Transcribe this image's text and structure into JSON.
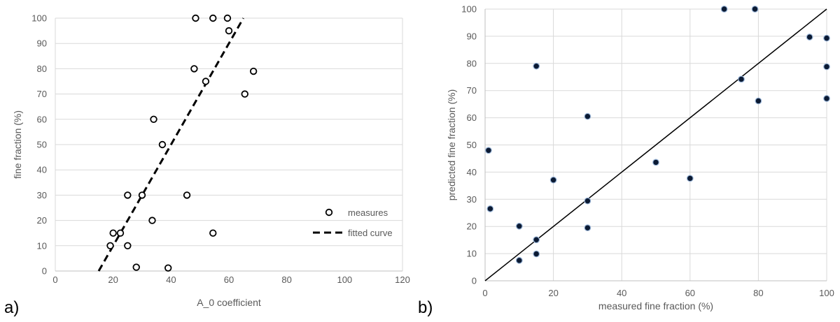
{
  "colors": {
    "grid": "#d9d9d9",
    "axis": "#bfbfbf",
    "marker": "#000000",
    "marker_face_b": "#0b1a33",
    "marker_glow_b": "#9bb6d8"
  },
  "chart_data": [
    {
      "type": "scatter",
      "panel_label": "a)",
      "xlabel": "A_0 coefficient",
      "ylabel": "fine fraction (%)",
      "xlim": [
        0,
        120
      ],
      "ylim": [
        0,
        100
      ],
      "xticks": [
        0,
        20,
        40,
        60,
        80,
        100,
        120
      ],
      "yticks": [
        0,
        10,
        20,
        30,
        40,
        50,
        60,
        70,
        80,
        90,
        100
      ],
      "grid": "horizontal",
      "legend": {
        "position": "bottom-right",
        "entries": [
          "measures",
          "fitted curve"
        ]
      },
      "series": [
        {
          "name": "measures",
          "marker": "open-circle",
          "points": [
            [
              48.5,
              100
            ],
            [
              54.5,
              100
            ],
            [
              59.5,
              100
            ],
            [
              60,
              95
            ],
            [
              48,
              80
            ],
            [
              68.5,
              79
            ],
            [
              52,
              75
            ],
            [
              65.5,
              70
            ],
            [
              34,
              60
            ],
            [
              37,
              50
            ],
            [
              25,
              30
            ],
            [
              30,
              30
            ],
            [
              45.5,
              30
            ],
            [
              33.5,
              20
            ],
            [
              20,
              15
            ],
            [
              22.5,
              15
            ],
            [
              54.5,
              15
            ],
            [
              19,
              10
            ],
            [
              25,
              10
            ],
            [
              28,
              1.5
            ],
            [
              39,
              1.2
            ]
          ]
        },
        {
          "name": "fitted curve",
          "line": "dashed",
          "points": [
            [
              15,
              0
            ],
            [
              65,
              100
            ]
          ]
        }
      ]
    },
    {
      "type": "scatter",
      "panel_label": "b)",
      "xlabel": "measured fine fraction  (%)",
      "ylabel": "predicted fine fraction (%)",
      "xlim": [
        0,
        100
      ],
      "ylim": [
        0,
        100
      ],
      "xticks": [
        0,
        20,
        40,
        60,
        80,
        100
      ],
      "yticks": [
        0,
        10,
        20,
        30,
        40,
        50,
        60,
        70,
        80,
        90,
        100
      ],
      "grid": "both",
      "series": [
        {
          "marker": "filled-circle",
          "points": [
            [
              70,
              100
            ],
            [
              79,
              100
            ],
            [
              95,
              89.7
            ],
            [
              100,
              89.3
            ],
            [
              15,
              79
            ],
            [
              100,
              78.8
            ],
            [
              75,
              74.2
            ],
            [
              80,
              66.2
            ],
            [
              100,
              67.1
            ],
            [
              30,
              60.5
            ],
            [
              1,
              48
            ],
            [
              50,
              43.6
            ],
            [
              60,
              37.7
            ],
            [
              20,
              37.1
            ],
            [
              30,
              29.4
            ],
            [
              1.5,
              26.5
            ],
            [
              10,
              20.1
            ],
            [
              30,
              19.5
            ],
            [
              15,
              15.1
            ],
            [
              15,
              9.9
            ],
            [
              10,
              7.5
            ]
          ]
        },
        {
          "line": "solid",
          "points": [
            [
              0,
              0
            ],
            [
              100,
              100
            ]
          ]
        }
      ]
    }
  ]
}
